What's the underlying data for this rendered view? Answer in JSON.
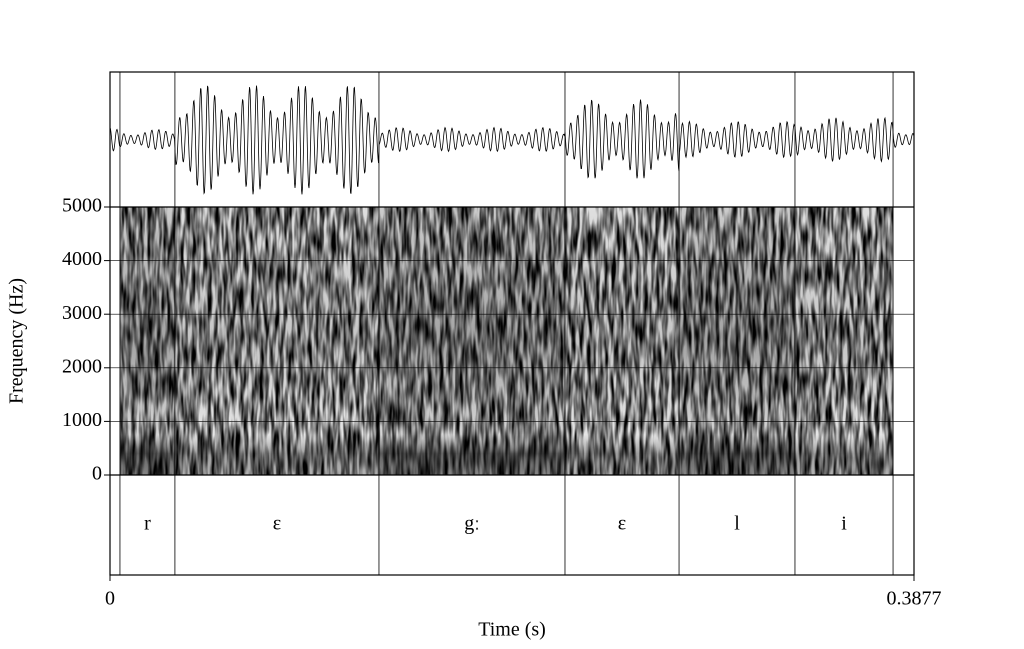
{
  "chart_data": {
    "type": "spectrogram",
    "x_label": "Time (s)",
    "y_label": "Frequency (Hz)",
    "xlim": [
      0,
      0.3877
    ],
    "xticks": [
      0,
      0.3877
    ],
    "ylim": [
      0,
      5000
    ],
    "yticks": [
      0,
      1000,
      2000,
      3000,
      4000,
      5000
    ],
    "grid": true,
    "segments": [
      {
        "label": "r",
        "start": 0.0048,
        "end": 0.0313
      },
      {
        "label": "ɛ",
        "start": 0.0313,
        "end": 0.1297
      },
      {
        "label": "gː",
        "start": 0.1297,
        "end": 0.2194
      },
      {
        "label": "ɛ",
        "start": 0.2194,
        "end": 0.2744
      },
      {
        "label": "l",
        "start": 0.2744,
        "end": 0.3303
      },
      {
        "label": "i",
        "start": 0.3303,
        "end": 0.3776
      }
    ]
  }
}
